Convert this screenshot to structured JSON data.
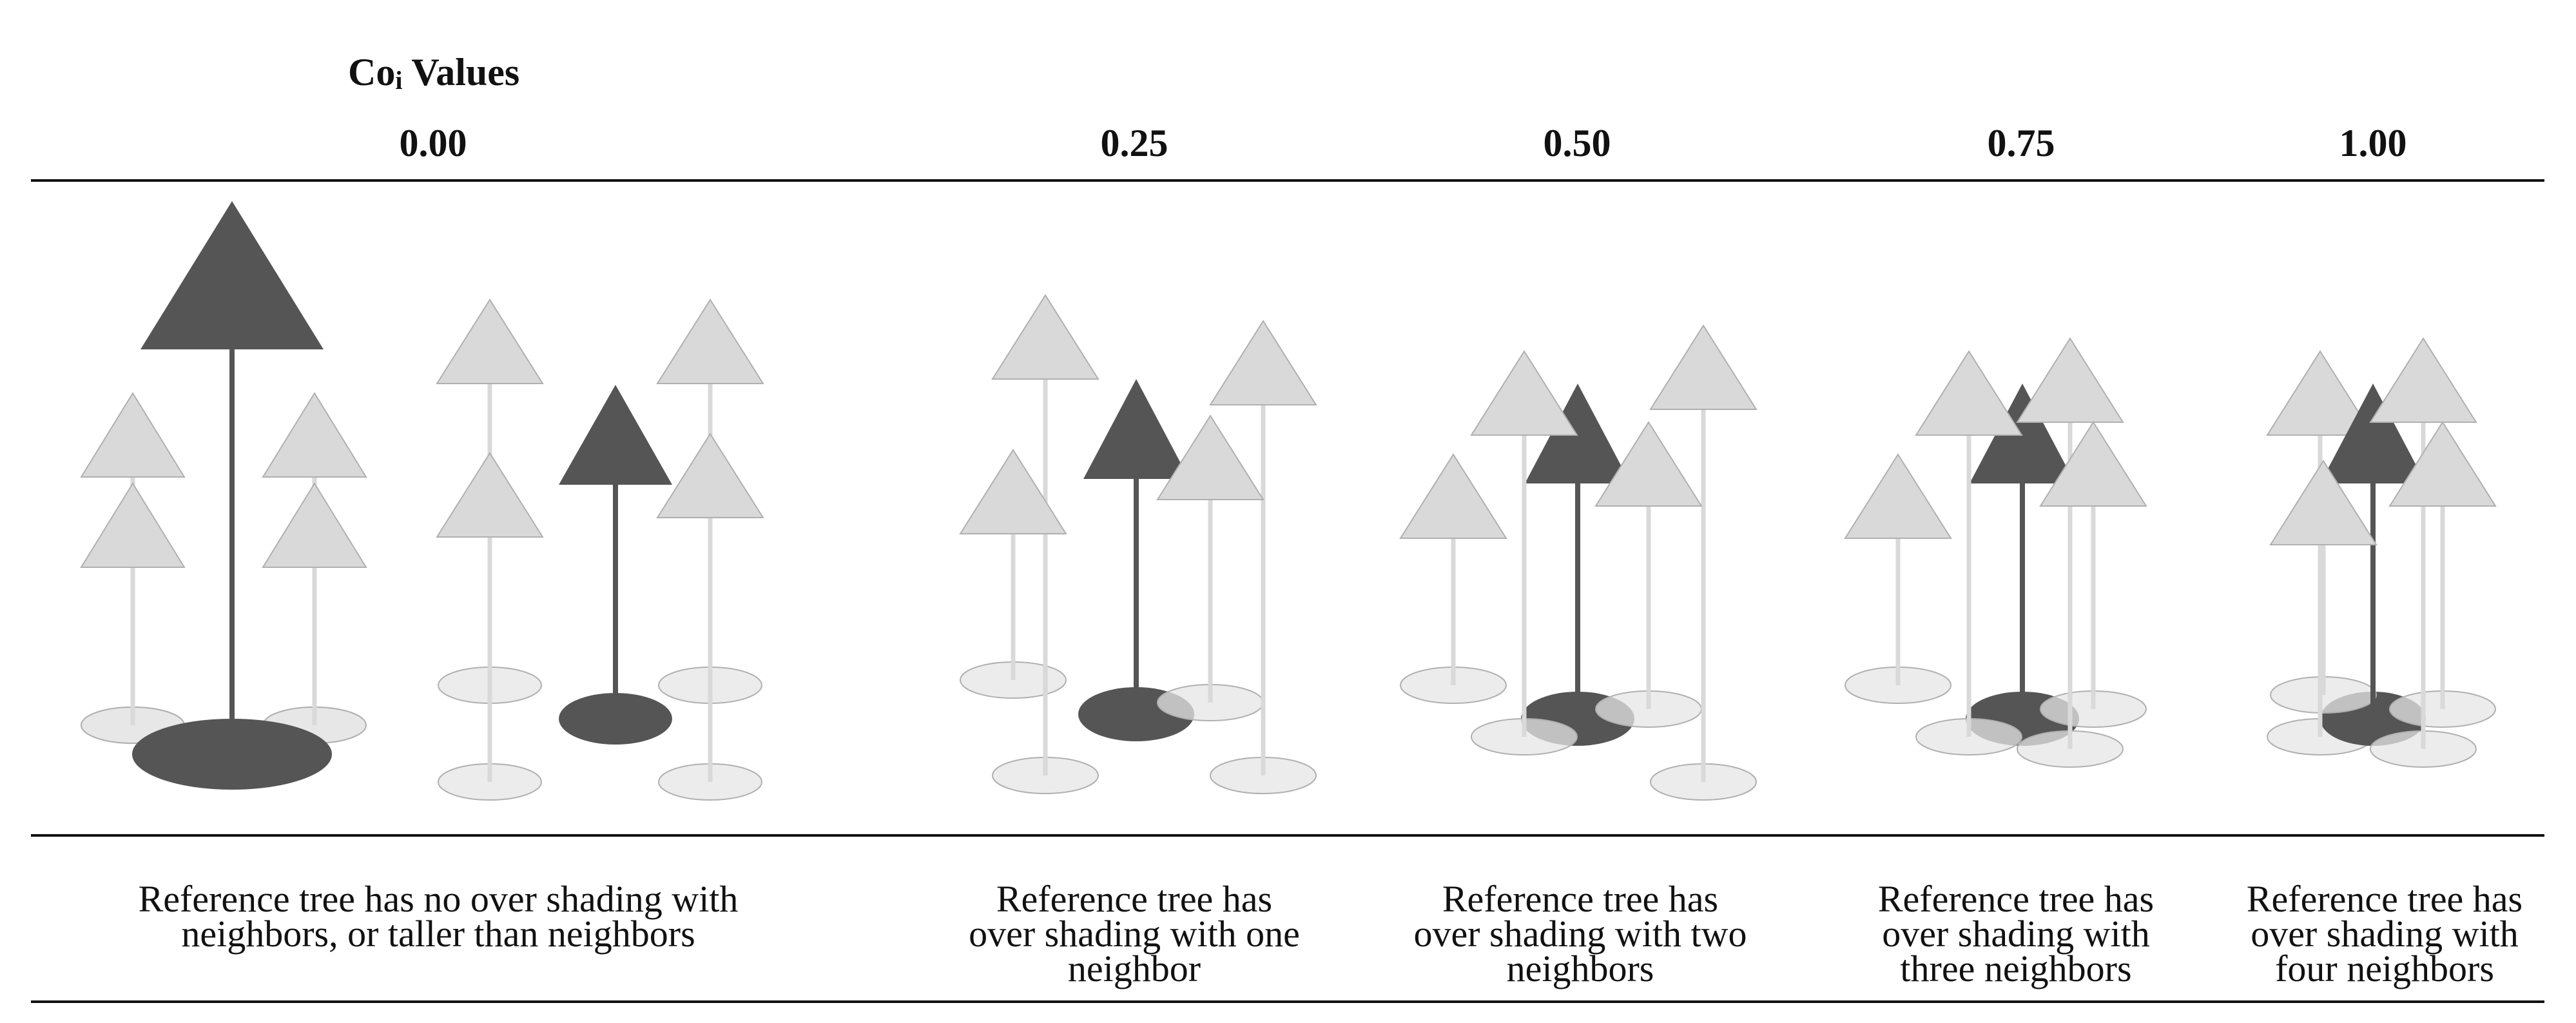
{
  "title": {
    "prefix": "Co",
    "subscript": "i",
    "suffix": " Values"
  },
  "columns": [
    {
      "value": "0.00",
      "description": "Reference tree has no over shading with neighbors, or taller than neighbors"
    },
    {
      "value": "0.25",
      "description": "Reference tree has over shading with one neighbor"
    },
    {
      "value": "0.50",
      "description": "Reference tree has over shading with two neighbors"
    },
    {
      "value": "0.75",
      "description": "Reference tree has over shading with three neighbors"
    },
    {
      "value": "1.00",
      "description": "Reference tree has over shading with four neighbors"
    }
  ],
  "colors": {
    "reference_tree": "#555555",
    "neighbor_tree": "#d9d9d9",
    "neighbor_outline": "#b0b0b0",
    "crown_shadow": "#e6e6e6",
    "rule": "#111111"
  }
}
